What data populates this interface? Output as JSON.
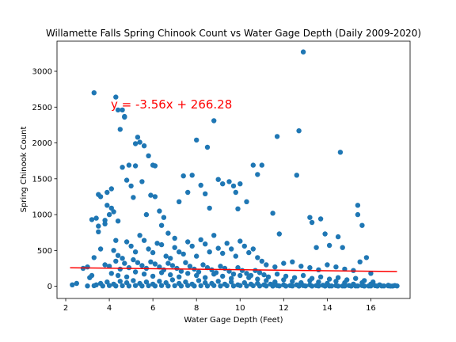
{
  "chart_data": {
    "type": "scatter",
    "title": "Willamette Falls Spring Chinook Count vs Water Gage Depth (Daily 2009-2020)",
    "xlabel": "Water Gage Depth (Feet)",
    "ylabel": "Spring Chinook Count",
    "xlim": [
      1.6,
      17.8
    ],
    "ylim": [
      -170,
      3420
    ],
    "xticks": [
      2,
      4,
      6,
      8,
      10,
      12,
      14,
      16
    ],
    "yticks": [
      0,
      500,
      1000,
      1500,
      2000,
      2500,
      3000
    ],
    "grid": false,
    "legend": "none",
    "point_color": "#1f77b4",
    "regression": {
      "slope": -3.56,
      "intercept": 266.28,
      "x_range": [
        2.2,
        17.2
      ],
      "color": "#ff0000",
      "equation_label": "y = -3.56x + 266.28"
    },
    "points": [
      [
        2.3,
        20
      ],
      [
        2.5,
        40
      ],
      [
        2.8,
        250
      ],
      [
        3.0,
        270
      ],
      [
        3.1,
        120
      ],
      [
        3.2,
        150
      ],
      [
        3.3,
        400
      ],
      [
        3.2,
        930
      ],
      [
        3.4,
        20
      ],
      [
        3.5,
        1280
      ],
      [
        3.6,
        1250
      ],
      [
        3.5,
        840
      ],
      [
        3.6,
        520
      ],
      [
        3.4,
        950
      ],
      [
        3.5,
        760
      ],
      [
        3.3,
        2700
      ],
      [
        3.8,
        870
      ],
      [
        3.9,
        1310
      ],
      [
        3.9,
        1130
      ],
      [
        3.8,
        920
      ],
      [
        4.0,
        1000
      ],
      [
        4.1,
        1360
      ],
      [
        4.1,
        1090
      ],
      [
        4.2,
        1040
      ],
      [
        4.3,
        640
      ],
      [
        4.4,
        910
      ],
      [
        4.3,
        2640
      ],
      [
        4.4,
        2460
      ],
      [
        4.5,
        2190
      ],
      [
        4.6,
        2460
      ],
      [
        4.6,
        1660
      ],
      [
        4.7,
        2370
      ],
      [
        4.7,
        2360
      ],
      [
        4.9,
        1690
      ],
      [
        4.8,
        1480
      ],
      [
        5.0,
        1400
      ],
      [
        5.1,
        1240
      ],
      [
        5.2,
        1680
      ],
      [
        5.2,
        1990
      ],
      [
        5.3,
        2080
      ],
      [
        5.4,
        2010
      ],
      [
        5.5,
        1460
      ],
      [
        5.6,
        1960
      ],
      [
        5.7,
        1000
      ],
      [
        5.8,
        1820
      ],
      [
        5.9,
        1270
      ],
      [
        6.0,
        1690
      ],
      [
        6.1,
        1680
      ],
      [
        6.1,
        1250
      ],
      [
        6.3,
        1050
      ],
      [
        6.5,
        960
      ],
      [
        6.4,
        850
      ],
      [
        6.7,
        740
      ],
      [
        7.0,
        670
      ],
      [
        7.2,
        1180
      ],
      [
        7.4,
        1540
      ],
      [
        7.6,
        1310
      ],
      [
        7.8,
        1550
      ],
      [
        8.0,
        2040
      ],
      [
        8.2,
        1410
      ],
      [
        8.4,
        1290
      ],
      [
        8.5,
        1940
      ],
      [
        8.6,
        1090
      ],
      [
        8.8,
        2310
      ],
      [
        9.0,
        1490
      ],
      [
        9.2,
        1430
      ],
      [
        9.5,
        1460
      ],
      [
        9.7,
        1400
      ],
      [
        9.8,
        1310
      ],
      [
        9.9,
        1080
      ],
      [
        10.0,
        1430
      ],
      [
        10.3,
        1180
      ],
      [
        10.6,
        1690
      ],
      [
        10.8,
        1560
      ],
      [
        11.0,
        1690
      ],
      [
        11.5,
        1020
      ],
      [
        11.8,
        730
      ],
      [
        11.7,
        2090
      ],
      [
        12.6,
        1550
      ],
      [
        12.7,
        2170
      ],
      [
        12.9,
        3270
      ],
      [
        13.2,
        960
      ],
      [
        13.3,
        890
      ],
      [
        13.5,
        540
      ],
      [
        13.7,
        940
      ],
      [
        13.9,
        730
      ],
      [
        14.1,
        570
      ],
      [
        14.5,
        690
      ],
      [
        14.7,
        540
      ],
      [
        14.6,
        1870
      ],
      [
        15.4,
        1130
      ],
      [
        15.4,
        1000
      ],
      [
        15.6,
        850
      ],
      [
        15.8,
        400
      ],
      [
        15.5,
        340
      ],
      [
        4.2,
        500
      ],
      [
        4.4,
        430
      ],
      [
        4.6,
        390
      ],
      [
        4.8,
        620
      ],
      [
        5.0,
        560
      ],
      [
        5.2,
        480
      ],
      [
        5.4,
        710
      ],
      [
        5.6,
        640
      ],
      [
        5.8,
        520
      ],
      [
        6.0,
        470
      ],
      [
        6.2,
        600
      ],
      [
        6.4,
        580
      ],
      [
        6.6,
        420
      ],
      [
        6.8,
        390
      ],
      [
        7.0,
        540
      ],
      [
        7.2,
        480
      ],
      [
        7.4,
        450
      ],
      [
        7.6,
        620
      ],
      [
        7.8,
        560
      ],
      [
        8.0,
        420
      ],
      [
        8.2,
        650
      ],
      [
        8.4,
        590
      ],
      [
        8.6,
        480
      ],
      [
        8.8,
        710
      ],
      [
        9.0,
        530
      ],
      [
        9.2,
        460
      ],
      [
        9.4,
        600
      ],
      [
        9.6,
        520
      ],
      [
        9.8,
        420
      ],
      [
        10.0,
        630
      ],
      [
        10.2,
        560
      ],
      [
        10.4,
        470
      ],
      [
        10.6,
        520
      ],
      [
        10.8,
        400
      ],
      [
        11.0,
        350
      ],
      [
        11.2,
        300
      ],
      [
        11.6,
        270
      ],
      [
        12.0,
        320
      ],
      [
        12.4,
        340
      ],
      [
        12.8,
        280
      ],
      [
        13.2,
        260
      ],
      [
        13.6,
        230
      ],
      [
        14.0,
        300
      ],
      [
        14.4,
        270
      ],
      [
        14.8,
        240
      ],
      [
        15.2,
        220
      ],
      [
        16.0,
        180
      ],
      [
        3.8,
        300
      ],
      [
        4.0,
        280
      ],
      [
        4.3,
        350
      ],
      [
        4.5,
        240
      ],
      [
        4.7,
        320
      ],
      [
        4.9,
        260
      ],
      [
        5.1,
        370
      ],
      [
        5.3,
        330
      ],
      [
        5.5,
        290
      ],
      [
        5.7,
        250
      ],
      [
        5.9,
        340
      ],
      [
        6.1,
        310
      ],
      [
        6.3,
        270
      ],
      [
        6.5,
        230
      ],
      [
        6.7,
        320
      ],
      [
        6.9,
        290
      ],
      [
        7.1,
        250
      ],
      [
        7.3,
        210
      ],
      [
        7.5,
        330
      ],
      [
        7.7,
        280
      ],
      [
        7.9,
        240
      ],
      [
        8.1,
        200
      ],
      [
        8.3,
        300
      ],
      [
        8.5,
        260
      ],
      [
        8.7,
        230
      ],
      [
        8.9,
        190
      ],
      [
        9.1,
        280
      ],
      [
        9.3,
        250
      ],
      [
        9.5,
        210
      ],
      [
        9.7,
        170
      ],
      [
        9.9,
        260
      ],
      [
        10.1,
        220
      ],
      [
        10.3,
        180
      ],
      [
        10.5,
        150
      ],
      [
        10.7,
        220
      ],
      [
        10.9,
        190
      ],
      [
        11.1,
        160
      ],
      [
        11.3,
        130
      ],
      [
        11.7,
        170
      ],
      [
        12.1,
        140
      ],
      [
        12.5,
        120
      ],
      [
        12.9,
        150
      ],
      [
        13.3,
        110
      ],
      [
        13.7,
        130
      ],
      [
        14.1,
        100
      ],
      [
        14.5,
        120
      ],
      [
        14.9,
        90
      ],
      [
        15.3,
        110
      ],
      [
        15.7,
        80
      ],
      [
        16.1,
        60
      ],
      [
        4.1,
        180
      ],
      [
        4.4,
        150
      ],
      [
        4.8,
        130
      ],
      [
        5.2,
        200
      ],
      [
        5.6,
        170
      ],
      [
        6.0,
        140
      ],
      [
        6.4,
        190
      ],
      [
        6.8,
        160
      ],
      [
        7.2,
        130
      ],
      [
        7.6,
        180
      ],
      [
        8.0,
        150
      ],
      [
        8.4,
        120
      ],
      [
        8.8,
        170
      ],
      [
        9.2,
        140
      ],
      [
        9.6,
        110
      ],
      [
        10.0,
        150
      ],
      [
        10.4,
        120
      ],
      [
        10.8,
        100
      ],
      [
        11.2,
        80
      ],
      [
        11.6,
        60
      ],
      [
        12.0,
        90
      ],
      [
        12.4,
        70
      ],
      [
        12.8,
        50
      ],
      [
        13.2,
        80
      ],
      [
        13.6,
        60
      ],
      [
        14.0,
        40
      ],
      [
        14.4,
        70
      ],
      [
        14.8,
        50
      ],
      [
        15.2,
        30
      ],
      [
        15.6,
        50
      ],
      [
        16.0,
        30
      ],
      [
        16.4,
        20
      ],
      [
        16.8,
        15
      ],
      [
        17.1,
        10
      ],
      [
        3.6,
        40
      ],
      [
        3.9,
        60
      ],
      [
        4.2,
        30
      ],
      [
        4.5,
        70
      ],
      [
        4.8,
        50
      ],
      [
        5.1,
        80
      ],
      [
        5.4,
        40
      ],
      [
        5.7,
        60
      ],
      [
        6.0,
        30
      ],
      [
        6.3,
        70
      ],
      [
        6.6,
        50
      ],
      [
        6.9,
        90
      ],
      [
        7.2,
        40
      ],
      [
        7.5,
        60
      ],
      [
        7.8,
        30
      ],
      [
        8.1,
        80
      ],
      [
        8.4,
        50
      ],
      [
        8.7,
        40
      ],
      [
        9.0,
        70
      ],
      [
        9.3,
        30
      ],
      [
        9.6,
        60
      ],
      [
        9.9,
        20
      ],
      [
        10.2,
        50
      ],
      [
        10.5,
        30
      ],
      [
        10.8,
        40
      ],
      [
        11.1,
        20
      ],
      [
        11.4,
        30
      ],
      [
        11.7,
        10
      ],
      [
        12.0,
        20
      ],
      [
        12.3,
        10
      ],
      [
        12.6,
        20
      ],
      [
        12.9,
        10
      ],
      [
        13.2,
        20
      ],
      [
        13.5,
        10
      ],
      [
        13.8,
        15
      ],
      [
        14.1,
        5
      ],
      [
        14.4,
        10
      ],
      [
        14.7,
        5
      ],
      [
        15.0,
        10
      ],
      [
        15.3,
        5
      ],
      [
        15.6,
        10
      ],
      [
        15.9,
        5
      ],
      [
        16.2,
        8
      ],
      [
        16.5,
        4
      ],
      [
        16.8,
        6
      ],
      [
        17.0,
        3
      ],
      [
        17.2,
        5
      ],
      [
        3.0,
        5
      ],
      [
        3.3,
        8
      ],
      [
        3.7,
        5
      ],
      [
        4.0,
        10
      ],
      [
        4.3,
        5
      ],
      [
        4.6,
        8
      ],
      [
        4.9,
        5
      ],
      [
        5.2,
        10
      ],
      [
        5.5,
        5
      ],
      [
        5.8,
        8
      ],
      [
        6.1,
        5
      ],
      [
        6.4,
        10
      ],
      [
        6.7,
        5
      ],
      [
        7.0,
        8
      ],
      [
        7.3,
        5
      ],
      [
        7.6,
        10
      ],
      [
        7.9,
        5
      ],
      [
        8.2,
        8
      ],
      [
        8.5,
        5
      ],
      [
        8.8,
        10
      ],
      [
        9.1,
        5
      ],
      [
        9.4,
        8
      ],
      [
        9.7,
        5
      ],
      [
        10.0,
        10
      ],
      [
        10.3,
        5
      ],
      [
        10.6,
        8
      ],
      [
        10.9,
        5
      ],
      [
        11.2,
        5
      ],
      [
        11.5,
        3
      ],
      [
        11.8,
        5
      ],
      [
        12.1,
        3
      ],
      [
        12.4,
        5
      ],
      [
        12.7,
        3
      ],
      [
        13.0,
        5
      ],
      [
        13.3,
        3
      ],
      [
        13.6,
        5
      ],
      [
        13.9,
        3
      ],
      [
        14.2,
        5
      ],
      [
        14.5,
        3
      ],
      [
        14.8,
        5
      ],
      [
        15.1,
        3
      ],
      [
        15.4,
        5
      ],
      [
        15.7,
        3
      ],
      [
        16.0,
        5
      ],
      [
        16.3,
        3
      ],
      [
        16.6,
        5
      ],
      [
        16.9,
        3
      ]
    ]
  }
}
